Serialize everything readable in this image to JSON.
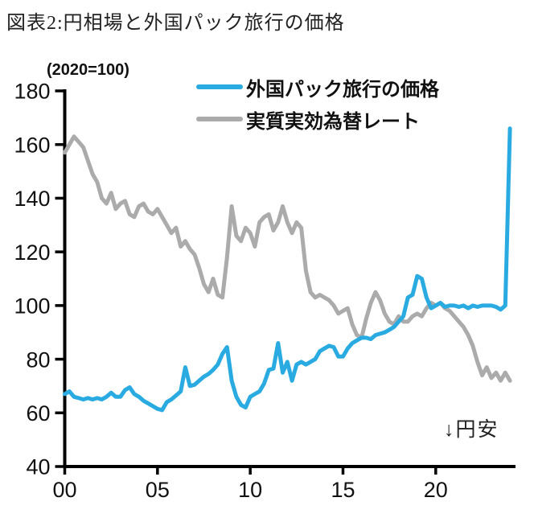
{
  "title": "図表2:円相場と外国パック旅行の価格",
  "unit_label": "(2020=100)",
  "annotation": "↓円安",
  "colors": {
    "tour_price": "#29ABE2",
    "reer": "#ABABAB",
    "axis": "#000000",
    "text": "#111111"
  },
  "legend": {
    "items": [
      {
        "label": "外国パック旅行の価格",
        "color_key": "tour_price"
      },
      {
        "label": "実質実効為替レート",
        "color_key": "reer"
      }
    ]
  },
  "chart_data": {
    "type": "line",
    "title": "図表2:円相場と外国パック旅行の価格",
    "ylabel": "(2020=100)",
    "xlim": [
      2000,
      2024.3
    ],
    "ylim": [
      40,
      180
    ],
    "y_ticks": [
      180,
      160,
      140,
      120,
      100,
      80,
      60,
      40
    ],
    "x_tick_years": [
      2000,
      2005,
      2010,
      2015,
      2020
    ],
    "x_tick_labels": [
      "00",
      "05",
      "10",
      "15",
      "20"
    ],
    "grid": false,
    "legend_position": "top",
    "x_start": 2000,
    "x_step_years": 0.25,
    "series": [
      {
        "name": "実質実効為替レート",
        "color_key": "reer",
        "values": [
          157,
          160,
          163,
          161,
          159,
          154,
          149,
          146,
          140,
          138,
          142,
          136,
          138,
          139,
          134,
          133,
          137,
          138,
          135,
          134,
          136,
          133,
          130,
          127,
          129,
          122,
          124,
          121,
          119,
          114,
          108,
          105,
          110,
          104,
          103,
          118,
          137,
          126,
          124,
          129,
          127,
          122,
          131,
          133,
          134,
          128,
          131,
          137,
          131,
          127,
          131,
          129,
          113,
          105,
          103,
          104,
          103,
          102,
          100,
          97,
          98,
          99,
          93,
          89,
          88,
          95,
          101,
          105,
          102,
          97,
          94,
          93,
          96,
          94,
          94,
          96,
          97,
          96,
          99,
          101,
          100,
          101,
          99,
          98,
          96,
          94,
          92,
          89,
          85,
          79,
          74,
          77,
          73,
          75,
          72,
          75,
          72
        ]
      },
      {
        "name": "外国パック旅行の価格",
        "color_key": "tour_price",
        "values": [
          67,
          68,
          66,
          65.5,
          65,
          65.5,
          65,
          65.5,
          65,
          66,
          67.5,
          66,
          66,
          68.5,
          69.5,
          67,
          66,
          64.5,
          63.5,
          62.5,
          61.5,
          61,
          64,
          65,
          66.5,
          68,
          77,
          70,
          70.5,
          72,
          73.5,
          74.5,
          76,
          78,
          82,
          84.5,
          72,
          66,
          63,
          62,
          66,
          67,
          68,
          71,
          76,
          76.5,
          86,
          75,
          79,
          72,
          78,
          79,
          78,
          79,
          80,
          83,
          84,
          85,
          84.5,
          81,
          81,
          84,
          86,
          87,
          88,
          88,
          87.5,
          89,
          89.5,
          90,
          91,
          92,
          94,
          96,
          103,
          104,
          111,
          110,
          103,
          99,
          100,
          101,
          99.5,
          100,
          100,
          99.5,
          100,
          99,
          100,
          99.5,
          100,
          100,
          100,
          99.5,
          98.5,
          100,
          166
        ]
      }
    ]
  }
}
